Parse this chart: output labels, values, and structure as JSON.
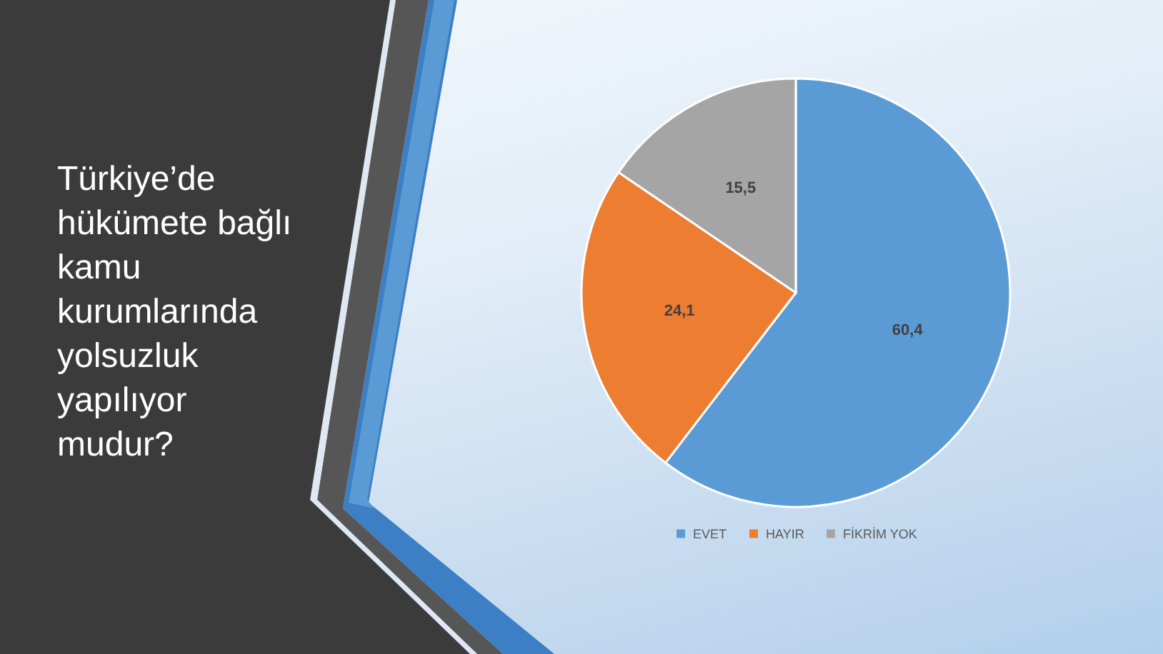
{
  "chart_data": {
    "type": "pie",
    "title": "Türkiye’de hükümete bağlı kamu kurumlarında yolsuzluk yapılıyor mudur?",
    "categories": [
      "EVET",
      "HAYIR",
      "FİKRİM YOK"
    ],
    "values": [
      60.4,
      24.1,
      15.5
    ],
    "colors": [
      "#5b9bd5",
      "#ed7d31",
      "#a5a5a5"
    ],
    "value_labels": [
      "60,4",
      "24,1",
      "15,5"
    ],
    "legend": "bottom"
  }
}
